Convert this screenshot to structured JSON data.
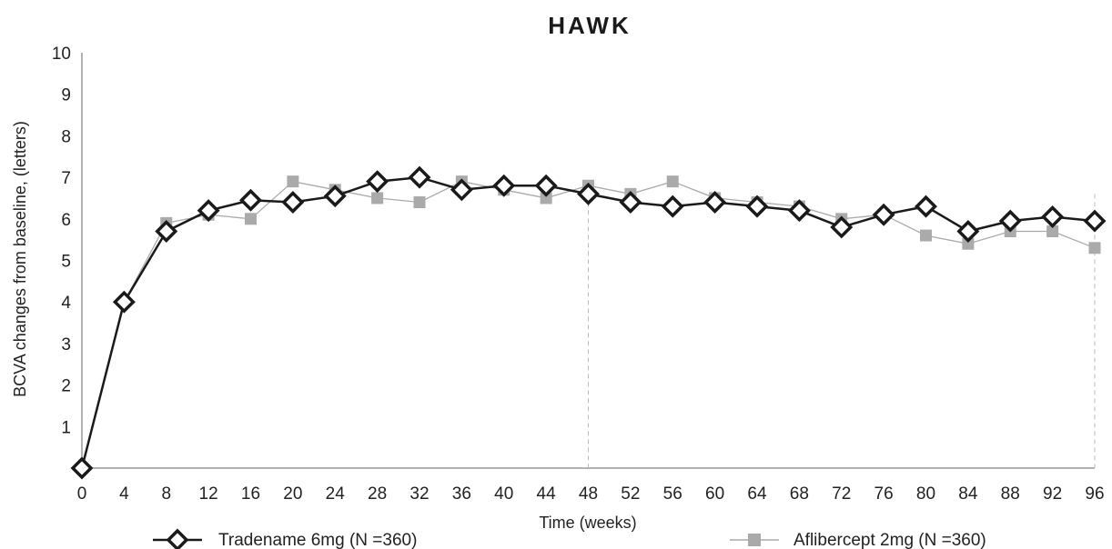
{
  "chart_data": {
    "type": "line",
    "title": "HAWK",
    "xlabel": "Time (weeks)",
    "ylabel": "BCVA changes from baseline, (letters)",
    "x": [
      0,
      4,
      8,
      12,
      16,
      20,
      24,
      28,
      32,
      36,
      40,
      44,
      48,
      52,
      56,
      60,
      64,
      68,
      72,
      76,
      80,
      84,
      88,
      92,
      96
    ],
    "x_tick_labels": [
      "0",
      "4",
      "8",
      "12",
      "16",
      "20",
      "24",
      "28",
      "32",
      "36",
      "40",
      "44",
      "48",
      "52",
      "56",
      "60",
      "64",
      "68",
      "72",
      "76",
      "80",
      "84",
      "88",
      "92",
      "96"
    ],
    "y_tick_labels": [
      "1",
      "2",
      "3",
      "4",
      "5",
      "6",
      "7",
      "8",
      "9",
      "10"
    ],
    "xlim": [
      0,
      96
    ],
    "ylim": [
      0,
      10
    ],
    "vertical_reference_lines_at_x": [
      48,
      96
    ],
    "legend_position": "bottom",
    "series": [
      {
        "name": "Tradename 6mg (N =360)",
        "color": "#1a1a1a",
        "marker": "diamond",
        "values": [
          0,
          4.0,
          5.7,
          6.2,
          6.45,
          6.4,
          6.55,
          6.9,
          7.0,
          6.7,
          6.8,
          6.8,
          6.6,
          6.4,
          6.3,
          6.4,
          6.3,
          6.2,
          5.8,
          6.1,
          6.3,
          5.7,
          5.95,
          6.05,
          5.95
        ]
      },
      {
        "name": "Aflibercept 2mg (N =360)",
        "color": "#aaaaaa",
        "marker": "square",
        "values": [
          0,
          4.0,
          5.9,
          6.1,
          6.0,
          6.9,
          6.7,
          6.5,
          6.4,
          6.9,
          6.7,
          6.5,
          6.8,
          6.6,
          6.9,
          6.5,
          6.4,
          6.3,
          6.0,
          6.1,
          5.6,
          5.4,
          5.7,
          5.7,
          5.3
        ]
      }
    ]
  }
}
